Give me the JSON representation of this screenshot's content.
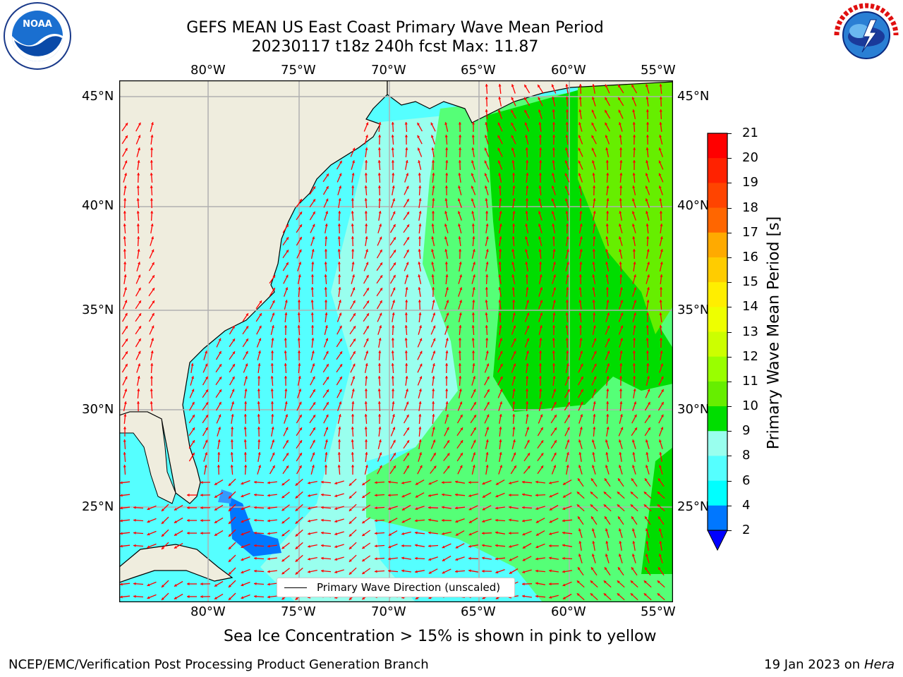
{
  "header": {
    "title_line1": "GEFS MEAN US East Coast Primary Wave Mean Period",
    "title_line2": "20230117 t18z 240h fcst   Max: 11.87"
  },
  "logos": {
    "left": {
      "name": "NOAA",
      "ring_text": "NATIONAL OCEANIC AND ATMOSPHERIC ADMINISTRATION · U.S. DEPARTMENT OF COMMERCE"
    },
    "right": {
      "name": "NATIONAL WEATHER SERVICE"
    }
  },
  "map": {
    "lon_ticks": [
      "80°W",
      "75°W",
      "70°W",
      "65°W",
      "60°W",
      "55°W"
    ],
    "lat_ticks": [
      "45°N",
      "40°N",
      "35°N",
      "30°N",
      "25°N"
    ],
    "legend_label": "Primary Wave Direction (unscaled)",
    "colors": {
      "land": "#efedde",
      "grid": "#b0b0b0",
      "arrow": "#ff0000"
    }
  },
  "colorbar": {
    "label": "Primary Wave Mean Period [s]",
    "ticks": [
      "21",
      "20",
      "19",
      "18",
      "17",
      "16",
      "15",
      "14",
      "13",
      "12",
      "11",
      "10",
      "9",
      "8",
      "6",
      "4",
      "2"
    ],
    "band_colors": [
      "#ff0000",
      "#ff2200",
      "#ff4400",
      "#ff6600",
      "#ff8800",
      "#ffaa00",
      "#ffcc00",
      "#ffee00",
      "#eeff00",
      "#ccff00",
      "#99ff00",
      "#66ee00",
      "#00dd00",
      "#55ff77",
      "#99ffee",
      "#55ffff",
      "#00ffff",
      "#0077ff"
    ],
    "under_color": "#0000ff"
  },
  "caption": "Sea Ice Concentration > 15% is shown in pink to yellow",
  "footer": {
    "left": "NCEP/EMC/Verification Post Processing Product Generation Branch",
    "date": "19 Jan 2023 on",
    "machine": "Hera"
  }
}
